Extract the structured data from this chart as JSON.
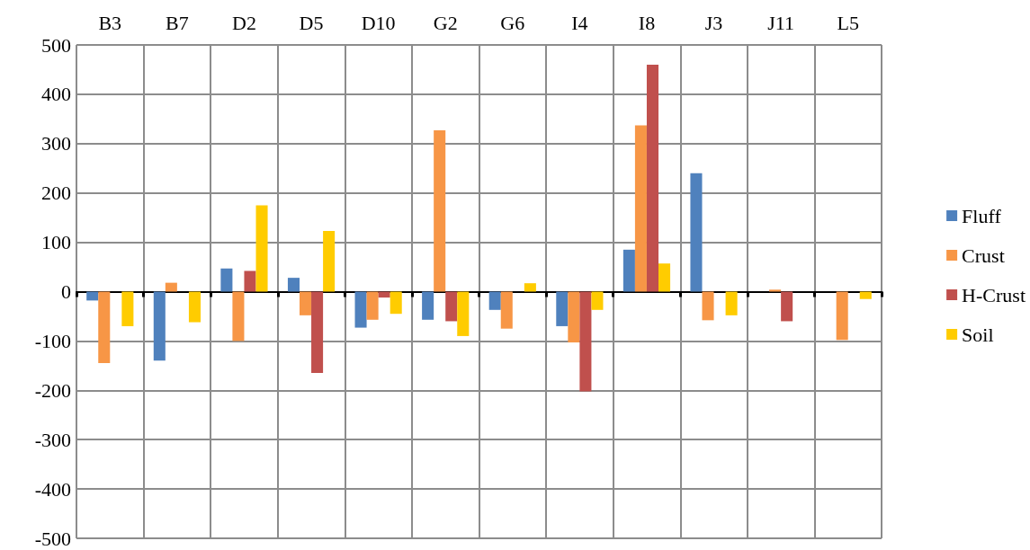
{
  "chart_data": {
    "type": "bar",
    "categories": [
      "B3",
      "B7",
      "D2",
      "D5",
      "D10",
      "G2",
      "G6",
      "I4",
      "I8",
      "J3",
      "J11",
      "L5"
    ],
    "series": [
      {
        "name": "Fluff",
        "color": "#4f81bd",
        "values": [
          -18,
          -140,
          47,
          28,
          -73,
          -57,
          -37,
          -70,
          85,
          240,
          null,
          null
        ]
      },
      {
        "name": "Crust",
        "color": "#f79646",
        "values": [
          -145,
          18,
          -100,
          -48,
          -57,
          327,
          -75,
          -103,
          337,
          -58,
          4,
          -98
        ]
      },
      {
        "name": "H-Crust",
        "color": "#c0504d",
        "values": [
          null,
          null,
          42,
          -165,
          -12,
          -60,
          null,
          -202,
          460,
          null,
          -60,
          null
        ]
      },
      {
        "name": "Soil",
        "color": "#ffcc00",
        "values": [
          -70,
          -62,
          175,
          123,
          -45,
          -90,
          17,
          -37,
          57,
          -48,
          null,
          -15
        ]
      }
    ],
    "ylim": [
      -500,
      500
    ],
    "yticks": [
      -500,
      -400,
      -300,
      -200,
      -100,
      0,
      100,
      200,
      300,
      400,
      500
    ],
    "grid": true,
    "legend": "right"
  }
}
